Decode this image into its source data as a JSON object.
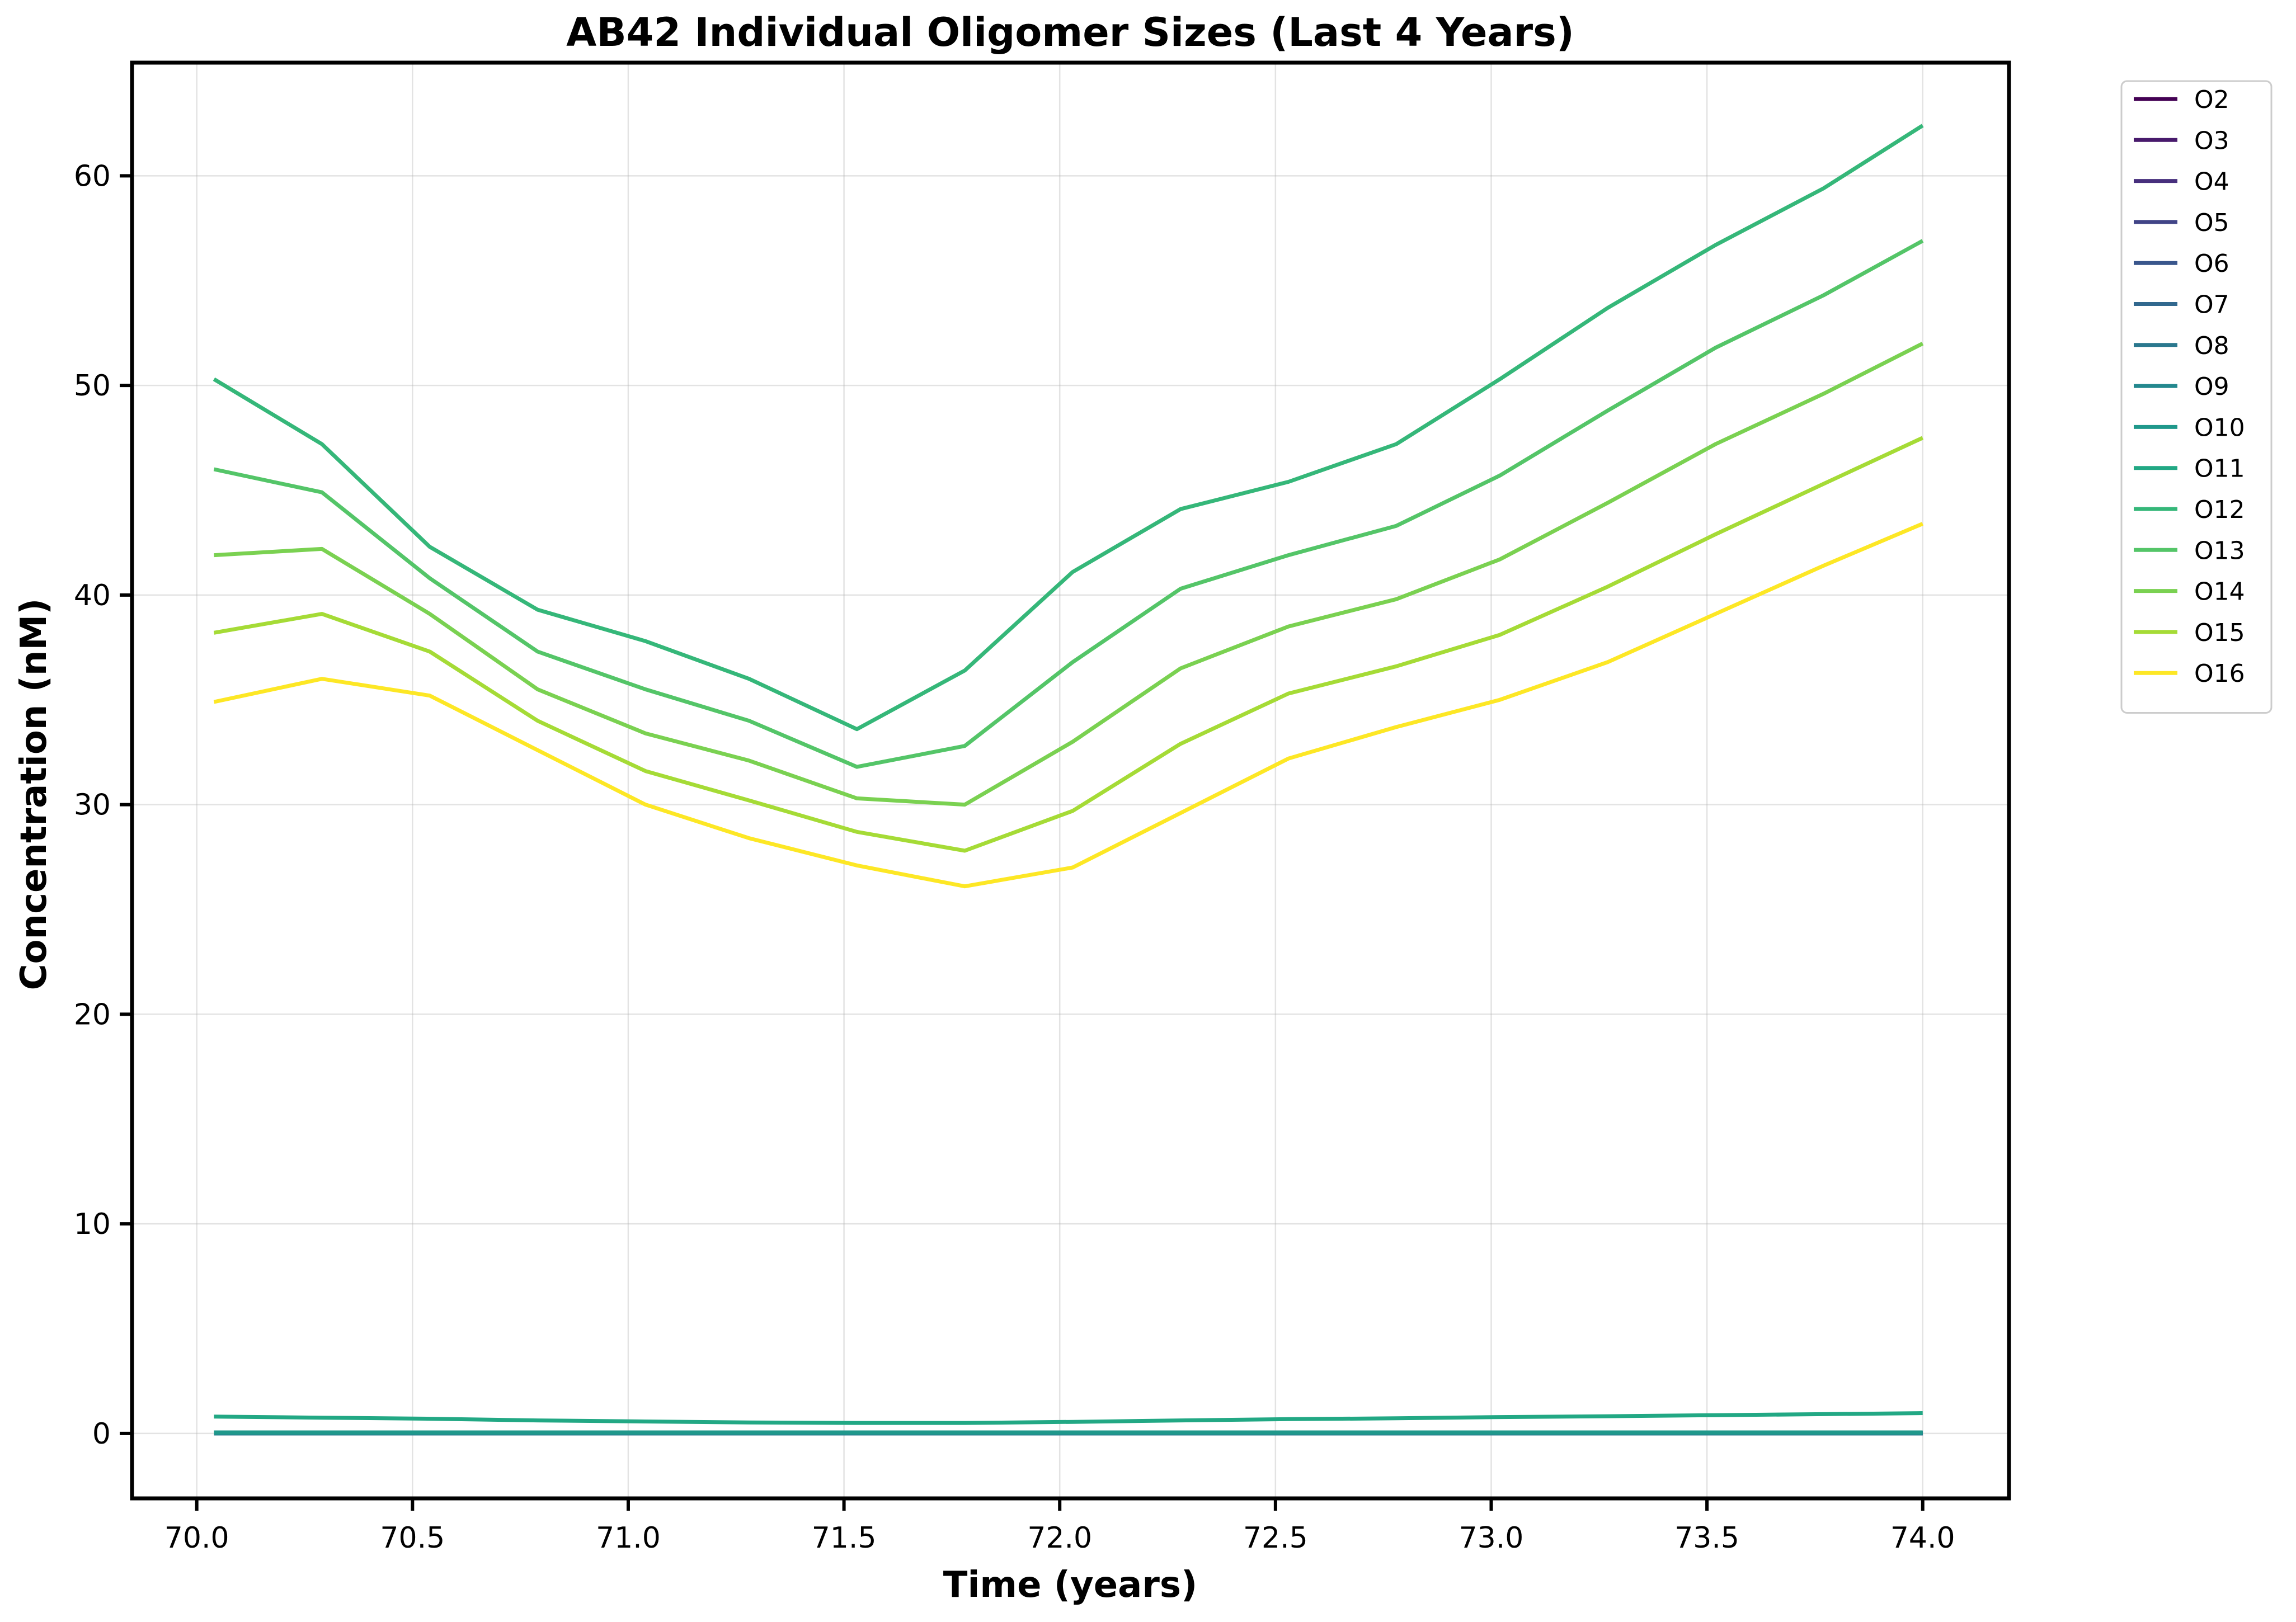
{
  "chart_data": {
    "type": "line",
    "title": "AB42 Individual Oligomer Sizes (Last 4 Years)",
    "xlabel": "Time (years)",
    "ylabel": "Concentration (nM)",
    "xlim": [
      69.85,
      74.2
    ],
    "ylim": [
      -3.1,
      65.4
    ],
    "xticks": [
      70.0,
      70.5,
      71.0,
      71.5,
      72.0,
      72.5,
      73.0,
      73.5,
      74.0
    ],
    "xtick_labels": [
      "70.0",
      "70.5",
      "71.0",
      "71.5",
      "72.0",
      "72.5",
      "73.0",
      "73.5",
      "74.0"
    ],
    "yticks": [
      0,
      10,
      20,
      30,
      40,
      50,
      60
    ],
    "ytick_labels": [
      "0",
      "10",
      "20",
      "30",
      "40",
      "50",
      "60"
    ],
    "grid": true,
    "legend_position": "outside-top-right",
    "x": [
      70.04,
      70.29,
      70.54,
      70.79,
      71.04,
      71.28,
      71.53,
      71.78,
      72.03,
      72.28,
      72.53,
      72.78,
      73.02,
      73.27,
      73.52,
      73.77,
      74.0
    ],
    "series": [
      {
        "name": "O2",
        "color": "#440154",
        "values": [
          0,
          0,
          0,
          0,
          0,
          0,
          0,
          0,
          0,
          0,
          0,
          0,
          0,
          0,
          0,
          0,
          0
        ]
      },
      {
        "name": "O3",
        "color": "#481a6c",
        "values": [
          0,
          0,
          0,
          0,
          0,
          0,
          0,
          0,
          0,
          0,
          0,
          0,
          0,
          0,
          0,
          0,
          0
        ]
      },
      {
        "name": "O4",
        "color": "#472f7d",
        "values": [
          0,
          0,
          0,
          0,
          0,
          0,
          0,
          0,
          0,
          0,
          0,
          0,
          0,
          0,
          0,
          0,
          0
        ]
      },
      {
        "name": "O5",
        "color": "#414487",
        "values": [
          0,
          0,
          0,
          0,
          0,
          0,
          0,
          0,
          0,
          0,
          0,
          0,
          0,
          0,
          0,
          0,
          0
        ]
      },
      {
        "name": "O6",
        "color": "#39568c",
        "values": [
          0,
          0,
          0,
          0,
          0,
          0,
          0,
          0,
          0,
          0,
          0,
          0,
          0,
          0,
          0,
          0,
          0
        ]
      },
      {
        "name": "O7",
        "color": "#31688e",
        "values": [
          0,
          0,
          0,
          0,
          0,
          0,
          0,
          0,
          0,
          0,
          0,
          0,
          0,
          0,
          0,
          0,
          0
        ]
      },
      {
        "name": "O8",
        "color": "#2a788e",
        "values": [
          0,
          0,
          0,
          0,
          0,
          0,
          0,
          0,
          0,
          0,
          0,
          0,
          0,
          0,
          0,
          0,
          0
        ]
      },
      {
        "name": "O9",
        "color": "#23888e",
        "values": [
          0,
          0,
          0,
          0,
          0,
          0,
          0,
          0,
          0,
          0,
          0,
          0,
          0,
          0,
          0,
          0,
          0
        ]
      },
      {
        "name": "O10",
        "color": "#1f988b",
        "values": [
          0.05,
          0.05,
          0.05,
          0.05,
          0.05,
          0.05,
          0.05,
          0.05,
          0.05,
          0.05,
          0.05,
          0.05,
          0.05,
          0.05,
          0.05,
          0.05,
          0.05
        ]
      },
      {
        "name": "O11",
        "color": "#22a884",
        "values": [
          0.8,
          0.75,
          0.7,
          0.62,
          0.57,
          0.52,
          0.5,
          0.5,
          0.55,
          0.62,
          0.68,
          0.72,
          0.78,
          0.82,
          0.87,
          0.92,
          0.97
        ]
      },
      {
        "name": "O12",
        "color": "#35b779",
        "values": [
          50.3,
          47.2,
          42.3,
          39.3,
          37.8,
          36.0,
          33.6,
          36.4,
          41.1,
          44.1,
          45.4,
          47.2,
          50.3,
          53.7,
          56.7,
          59.4,
          62.4
        ]
      },
      {
        "name": "O13",
        "color": "#54c568",
        "values": [
          46.0,
          44.9,
          40.8,
          37.3,
          35.5,
          34.0,
          31.8,
          32.8,
          36.8,
          40.3,
          41.9,
          43.3,
          45.7,
          48.8,
          51.8,
          54.3,
          56.9
        ]
      },
      {
        "name": "O14",
        "color": "#7ad151",
        "values": [
          41.9,
          42.2,
          39.1,
          35.5,
          33.4,
          32.1,
          30.3,
          30.0,
          33.0,
          36.5,
          38.5,
          39.8,
          41.7,
          44.4,
          47.2,
          49.6,
          52.0
        ]
      },
      {
        "name": "O15",
        "color": "#a5db36",
        "values": [
          38.2,
          39.1,
          37.3,
          34.0,
          31.6,
          30.2,
          28.7,
          27.8,
          29.7,
          32.9,
          35.3,
          36.6,
          38.1,
          40.4,
          42.9,
          45.3,
          47.5
        ]
      },
      {
        "name": "O16",
        "color": "#fde725",
        "values": [
          34.9,
          36.0,
          35.2,
          32.6,
          30.0,
          28.4,
          27.1,
          26.1,
          27.0,
          29.6,
          32.2,
          33.7,
          35.0,
          36.8,
          39.1,
          41.4,
          43.4
        ]
      }
    ]
  }
}
